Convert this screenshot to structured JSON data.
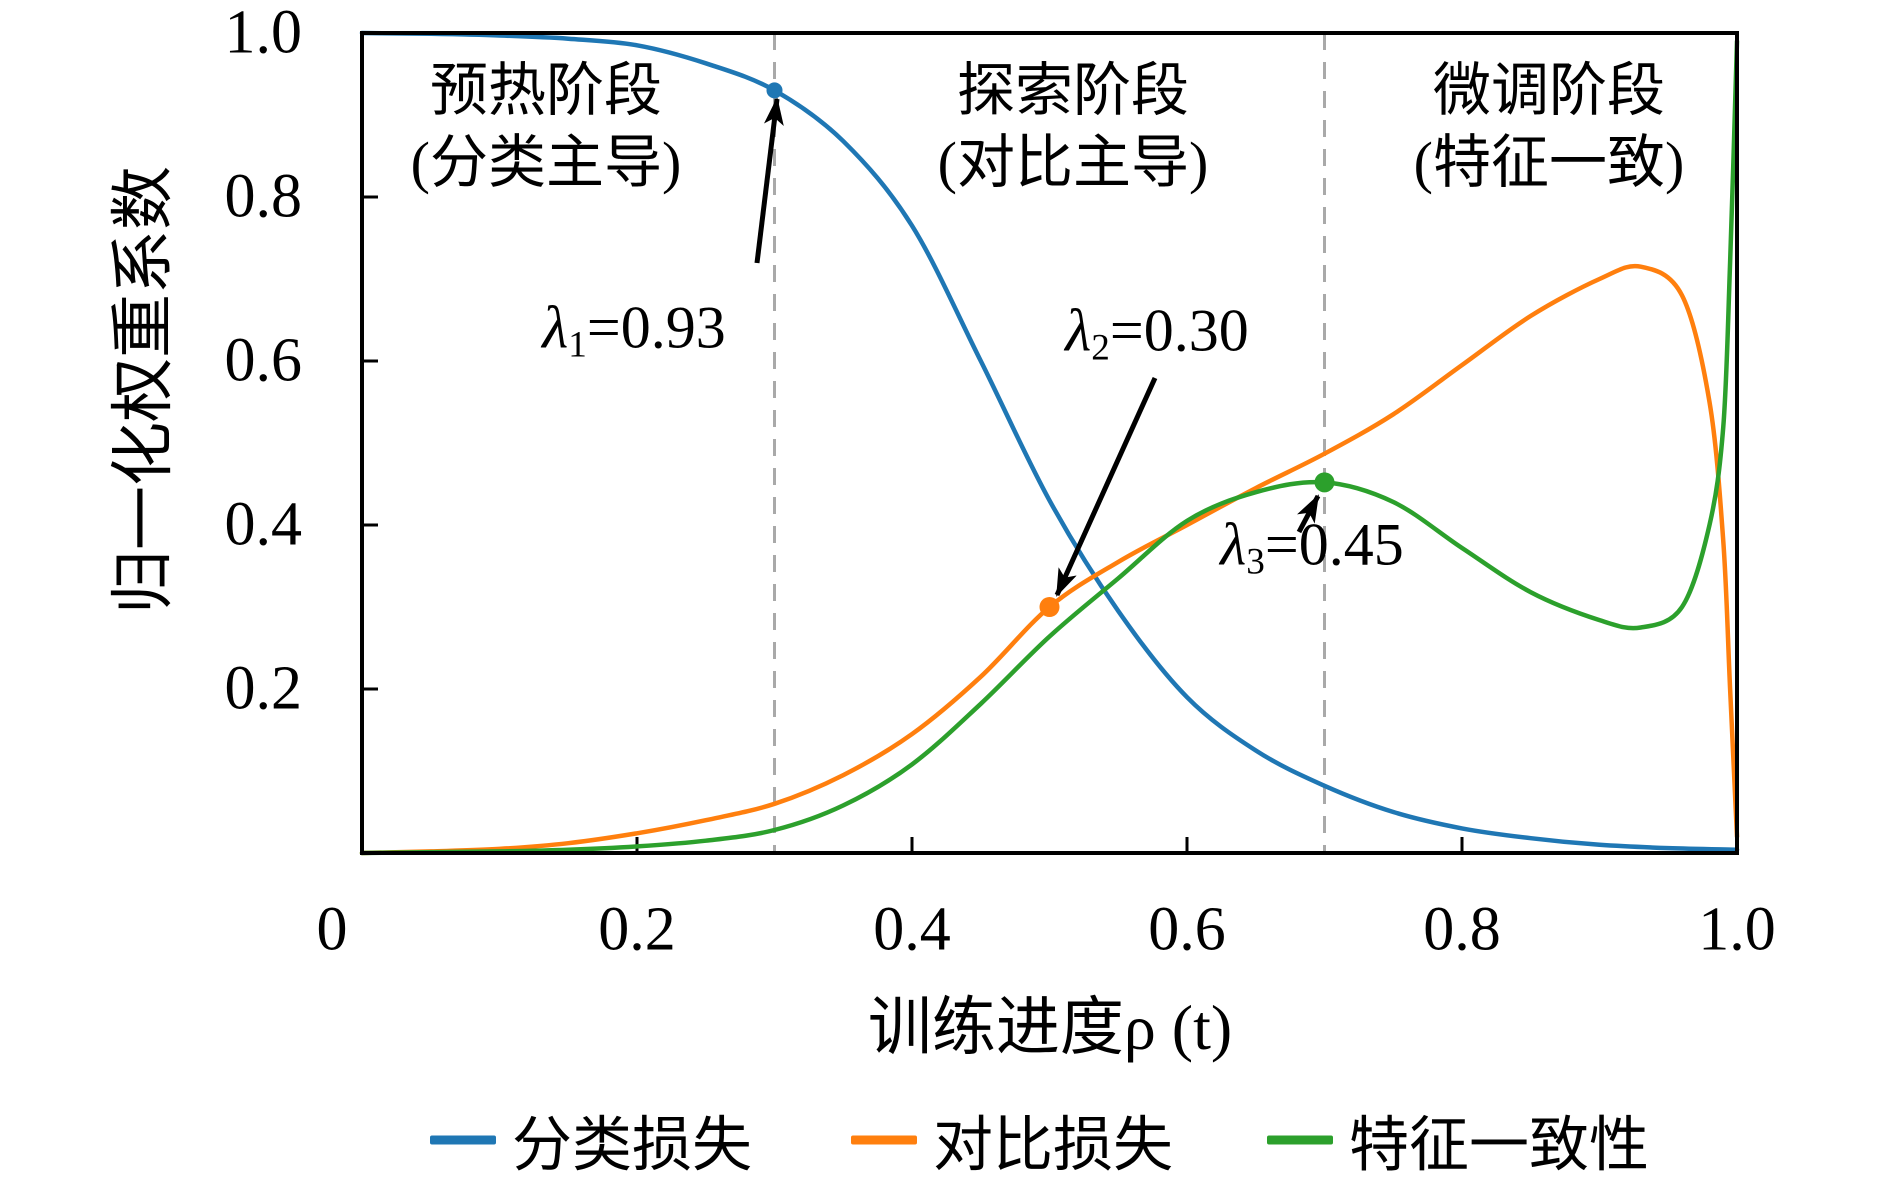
{
  "figure": {
    "phases": [
      {
        "line1": "预热阶段",
        "line2": "(分类主导)"
      },
      {
        "line1": "探索阶段",
        "line2": "(对比主导)"
      },
      {
        "line1": "微调阶段",
        "line2": "(特征一致)"
      }
    ],
    "annotations": [
      {
        "lambda": "λ",
        "sub": "1",
        "value": "=0.93"
      },
      {
        "lambda": "λ",
        "sub": "2",
        "value": "=0.30"
      },
      {
        "lambda": "λ",
        "sub": "3",
        "value": "=0.45"
      }
    ]
  },
  "chart_data": {
    "type": "line",
    "title": "",
    "xlabel": "训练进度ρ (t)",
    "ylabel": "归一化权重系数",
    "xlim": [
      0,
      1
    ],
    "ylim": [
      0,
      1
    ],
    "grid": false,
    "legend_position": "bottom",
    "phase_boundaries": [
      0.3,
      0.7
    ],
    "boundary_color": "#a9a9a9",
    "x_ticks": [
      {
        "value": 0.0,
        "label": "0"
      },
      {
        "value": 0.2,
        "label": "0.2"
      },
      {
        "value": 0.4,
        "label": "0.4"
      },
      {
        "value": 0.6,
        "label": "0.6"
      },
      {
        "value": 0.8,
        "label": "0.8"
      },
      {
        "value": 1.0,
        "label": "1.0"
      }
    ],
    "y_ticks": [
      {
        "value": 0.2,
        "label": "0.2"
      },
      {
        "value": 0.4,
        "label": "0.4"
      },
      {
        "value": 0.6,
        "label": "0.6"
      },
      {
        "value": 0.8,
        "label": "0.8"
      },
      {
        "value": 1.0,
        "label": "1.0"
      }
    ],
    "series": [
      {
        "name": "分类损失",
        "color": "#1f77b4",
        "points": [
          [
            0,
            1.0
          ],
          [
            0.05,
            0.999
          ],
          [
            0.1,
            0.997
          ],
          [
            0.15,
            0.993
          ],
          [
            0.2,
            0.985
          ],
          [
            0.25,
            0.963
          ],
          [
            0.3,
            0.93
          ],
          [
            0.35,
            0.868
          ],
          [
            0.4,
            0.765
          ],
          [
            0.45,
            0.6
          ],
          [
            0.5,
            0.43
          ],
          [
            0.55,
            0.295
          ],
          [
            0.6,
            0.19
          ],
          [
            0.65,
            0.125
          ],
          [
            0.7,
            0.082
          ],
          [
            0.75,
            0.05
          ],
          [
            0.8,
            0.03
          ],
          [
            0.85,
            0.018
          ],
          [
            0.9,
            0.01
          ],
          [
            0.95,
            0.006
          ],
          [
            1,
            0.004
          ]
        ]
      },
      {
        "name": "对比损失",
        "color": "#ff7f0e",
        "points": [
          [
            0,
            0.0
          ],
          [
            0.05,
            0.002
          ],
          [
            0.1,
            0.005
          ],
          [
            0.15,
            0.012
          ],
          [
            0.2,
            0.024
          ],
          [
            0.25,
            0.04
          ],
          [
            0.3,
            0.06
          ],
          [
            0.35,
            0.095
          ],
          [
            0.4,
            0.145
          ],
          [
            0.45,
            0.215
          ],
          [
            0.5,
            0.3
          ],
          [
            0.55,
            0.355
          ],
          [
            0.6,
            0.4
          ],
          [
            0.65,
            0.445
          ],
          [
            0.7,
            0.487
          ],
          [
            0.75,
            0.535
          ],
          [
            0.8,
            0.595
          ],
          [
            0.85,
            0.655
          ],
          [
            0.9,
            0.7
          ],
          [
            0.93,
            0.715
          ],
          [
            0.96,
            0.68
          ],
          [
            0.98,
            0.55
          ],
          [
            0.99,
            0.38
          ],
          [
            0.995,
            0.2
          ],
          [
            1,
            0.02
          ]
        ]
      },
      {
        "name": "特征一致性",
        "color": "#2ca02c",
        "points": [
          [
            0,
            0.0
          ],
          [
            0.1,
            0.002
          ],
          [
            0.15,
            0.004
          ],
          [
            0.2,
            0.008
          ],
          [
            0.25,
            0.015
          ],
          [
            0.3,
            0.028
          ],
          [
            0.35,
            0.058
          ],
          [
            0.4,
            0.108
          ],
          [
            0.45,
            0.182
          ],
          [
            0.5,
            0.264
          ],
          [
            0.55,
            0.335
          ],
          [
            0.6,
            0.405
          ],
          [
            0.65,
            0.44
          ],
          [
            0.7,
            0.452
          ],
          [
            0.75,
            0.428
          ],
          [
            0.8,
            0.372
          ],
          [
            0.85,
            0.318
          ],
          [
            0.9,
            0.284
          ],
          [
            0.93,
            0.275
          ],
          [
            0.96,
            0.3
          ],
          [
            0.98,
            0.4
          ],
          [
            0.99,
            0.52
          ],
          [
            0.995,
            0.72
          ],
          [
            1,
            0.99
          ]
        ]
      }
    ],
    "markers": [
      {
        "t": 0.3,
        "v": 0.93,
        "color": "#1f77b4",
        "r": 8,
        "label": "λ1=0.93"
      },
      {
        "t": 0.5,
        "v": 0.3,
        "color": "#ff7f0e",
        "r": 10,
        "label": "λ2=0.30"
      },
      {
        "t": 0.7,
        "v": 0.452,
        "color": "#2ca02c",
        "r": 10,
        "label": "λ3=0.45"
      }
    ]
  },
  "legend": {
    "items": [
      {
        "label": "分类损失",
        "color": "#1f77b4"
      },
      {
        "label": "对比损失",
        "color": "#ff7f0e"
      },
      {
        "label": "特征一致性",
        "color": "#2ca02c"
      }
    ]
  }
}
